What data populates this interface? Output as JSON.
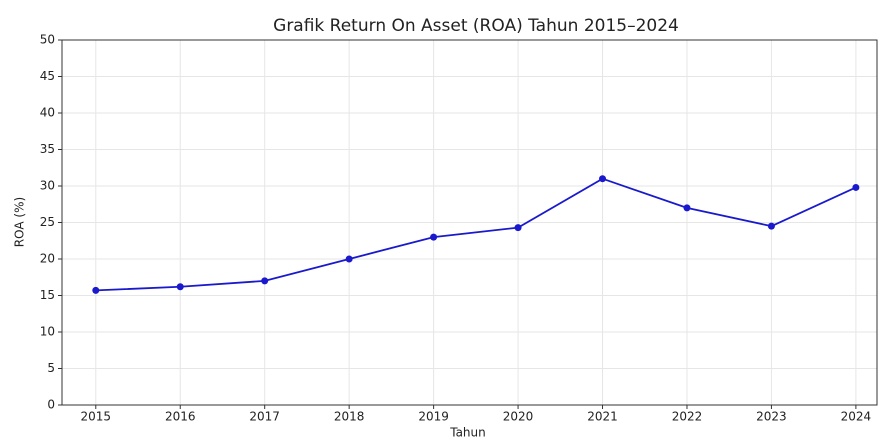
{
  "chart_data": {
    "type": "line",
    "title": "Grafik Return On Asset (ROA) Tahun 2015–2024",
    "x_label": "Tahun",
    "y_label": "ROA (%)",
    "x": [
      2015,
      2016,
      2017,
      2018,
      2019,
      2020,
      2021,
      2022,
      2023,
      2024
    ],
    "series": [
      {
        "name": "ROA",
        "color": "#1a1acc",
        "values": [
          15.7,
          16.2,
          17.0,
          20.0,
          23.0,
          24.3,
          31.0,
          27.0,
          24.5,
          29.8
        ]
      }
    ],
    "xlim": [
      2014.6,
      2024.25
    ],
    "xticks": [
      2015,
      2016,
      2017,
      2018,
      2019,
      2020,
      2021,
      2022,
      2023,
      2024
    ],
    "ylim": [
      0,
      50
    ],
    "yticks": [
      0,
      5,
      10,
      15,
      20,
      25,
      30,
      35,
      40,
      45,
      50
    ],
    "grid": true,
    "legend": false
  }
}
